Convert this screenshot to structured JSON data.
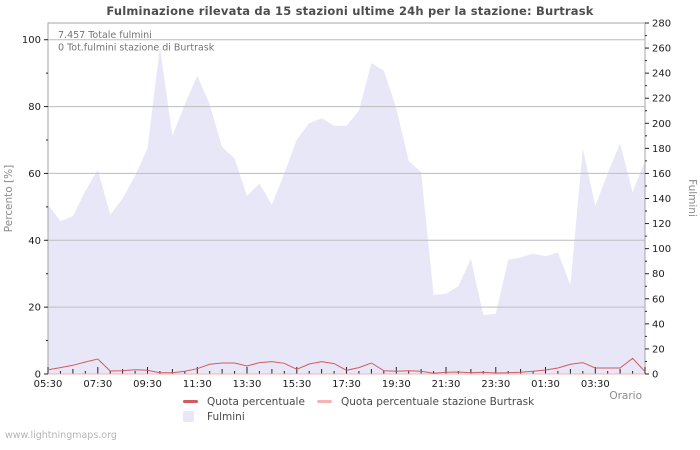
{
  "title": "Fulminazione rilevata da 15 stazioni ultime 24h per la stazione: Burtrask",
  "annotations": {
    "total_lightning": "7.457 Totale fulmini",
    "station_total": "0 Tot.fulmini stazione di Burtrask"
  },
  "watermark": "www.lightningmaps.org",
  "legend": {
    "quota": "Quota percentuale",
    "quota_station": "Quota percentuale stazione Burtrask",
    "fulmini": "Fulmini"
  },
  "colors": {
    "quota_line": "#d15b5e",
    "quota_station_line": "#f5b3b3",
    "fulmini_fill": "#e8e7f8",
    "gridline": "#bdbdbd",
    "plot_border": "#a6a6a6",
    "tick": "#222222"
  },
  "chart_data": {
    "type": "area+line combo, time series, last 24h",
    "grid": "horizontal only",
    "legend_position": "bottom",
    "x_axis": {
      "label": "Orario",
      "tick_label_every": 4,
      "tick_labels_shown": [
        "05:30",
        "07:30",
        "09:30",
        "11:30",
        "13:30",
        "15:30",
        "17:30",
        "19:30",
        "21:30",
        "23:30",
        "01:30",
        "03:30"
      ]
    },
    "left_axis": {
      "label": "Percento [%]",
      "ticks": [
        0,
        20,
        40,
        60,
        80,
        100
      ],
      "minor_step": 10,
      "range": [
        0,
        105
      ]
    },
    "right_axis": {
      "label": "Fulmini",
      "ticks": [
        0,
        20,
        40,
        60,
        80,
        100,
        120,
        140,
        160,
        180,
        200,
        220,
        240,
        260,
        280
      ],
      "minor_step": 10,
      "range": [
        0,
        280
      ]
    },
    "x": [
      "05:30",
      "06:00",
      "06:30",
      "07:00",
      "07:30",
      "08:00",
      "08:30",
      "09:00",
      "09:30",
      "10:00",
      "10:30",
      "11:00",
      "11:30",
      "12:00",
      "12:30",
      "13:00",
      "13:30",
      "14:00",
      "14:30",
      "15:00",
      "15:30",
      "16:00",
      "16:30",
      "17:00",
      "17:30",
      "18:00",
      "18:30",
      "19:00",
      "19:30",
      "20:00",
      "20:30",
      "21:00",
      "21:30",
      "22:00",
      "22:30",
      "23:00",
      "23:30",
      "00:00",
      "00:30",
      "01:00",
      "01:30",
      "02:00",
      "02:30",
      "03:00",
      "03:30",
      "04:00",
      "04:30",
      "05:00",
      "05:30"
    ],
    "series": [
      {
        "name": "Quota percentuale",
        "type": "line",
        "axis": "left",
        "unit": "%",
        "color_key": "quota_line",
        "values": [
          1.3,
          1.9,
          2.6,
          3.6,
          4.5,
          0.9,
          1.0,
          1.3,
          1.1,
          0.4,
          0.4,
          0.8,
          1.6,
          2.9,
          3.3,
          3.3,
          2.4,
          3.4,
          3.7,
          3.2,
          1.4,
          3.0,
          3.7,
          3.1,
          1.1,
          1.9,
          3.3,
          1.0,
          0.8,
          1.0,
          0.8,
          0.2,
          0.5,
          0.6,
          0.4,
          0.5,
          0.3,
          0.4,
          0.5,
          0.8,
          1.2,
          1.8,
          2.9,
          3.4,
          1.8,
          1.8,
          1.8,
          4.7,
          0.7
        ]
      },
      {
        "name": "Quota percentuale stazione Burtrask",
        "type": "line",
        "axis": "left",
        "unit": "%",
        "color_key": "quota_station_line",
        "values": [
          0,
          0,
          0,
          0,
          0,
          0,
          0,
          0,
          0,
          0,
          0,
          0,
          0,
          0,
          0,
          0,
          0,
          0,
          0,
          0,
          0,
          0,
          0,
          0,
          0,
          0,
          0,
          0,
          0,
          0,
          0,
          0,
          0,
          0,
          0,
          0,
          0,
          0,
          0,
          0,
          0,
          0,
          0,
          0,
          0,
          0,
          0,
          0,
          0
        ]
      },
      {
        "name": "Fulmini",
        "type": "area",
        "axis": "right",
        "unit": "count",
        "color_key": "fulmini_fill",
        "values": [
          135,
          122,
          126,
          146,
          163,
          127,
          140,
          158,
          180,
          261,
          190,
          215,
          238,
          215,
          181,
          172,
          142,
          152,
          135,
          160,
          187,
          200,
          204,
          198,
          198,
          210,
          248,
          242,
          212,
          170,
          161,
          63,
          64,
          70,
          92,
          47,
          48,
          91,
          93,
          96,
          94,
          97,
          71,
          180,
          134,
          160,
          184,
          145,
          170
        ]
      }
    ]
  }
}
